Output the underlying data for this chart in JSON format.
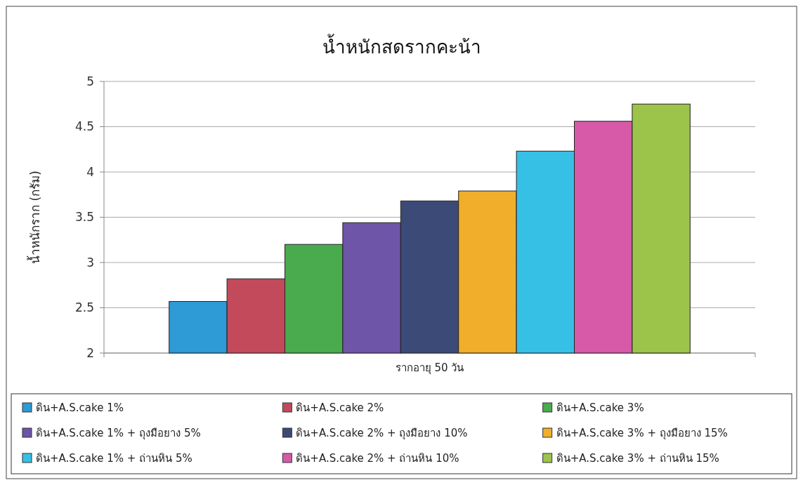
{
  "chart_data": {
    "type": "bar",
    "title": "น้ำหนักสดรากคะน้า",
    "ylabel": "น้ำหนักราก  (กรัม)",
    "categories": [
      "รากอายุ 50 วัน"
    ],
    "series": [
      {
        "name": "ดิน+A.S.cake 1%",
        "color": "#2e9ad6",
        "values": [
          2.57
        ]
      },
      {
        "name": "ดิน+A.S.cake 2%",
        "color": "#c24a5a",
        "values": [
          2.82
        ]
      },
      {
        "name": "ดิน+A.S.cake 3%",
        "color": "#4aaa4e",
        "values": [
          3.2
        ]
      },
      {
        "name": "ดิน+A.S.cake 1% + ถุงมือยาง 5%",
        "color": "#6e55a8",
        "values": [
          3.44
        ]
      },
      {
        "name": "ดิน+A.S.cake 2% + ถุงมือยาง 10%",
        "color": "#3c4a78",
        "values": [
          3.68
        ]
      },
      {
        "name": "ดิน+A.S.cake 3% + ถุงมือยาง 15%",
        "color": "#f0ae2a",
        "values": [
          3.79
        ]
      },
      {
        "name": "ดิน+A.S.cake 1% + ถ่านหิน 5%",
        "color": "#36c0e6",
        "values": [
          4.23
        ]
      },
      {
        "name": "ดิน+A.S.cake 2% + ถ่านหิน 10%",
        "color": "#d65aa8",
        "values": [
          4.56
        ]
      },
      {
        "name": "ดิน+A.S.cake 3% + ถ่านหิน 15%",
        "color": "#9cc44a",
        "values": [
          4.75
        ]
      }
    ],
    "ylim": [
      2,
      5
    ],
    "yticks": [
      2,
      2.5,
      3,
      3.5,
      4,
      4.5,
      5
    ],
    "grid": "y",
    "legend": "bottom"
  }
}
